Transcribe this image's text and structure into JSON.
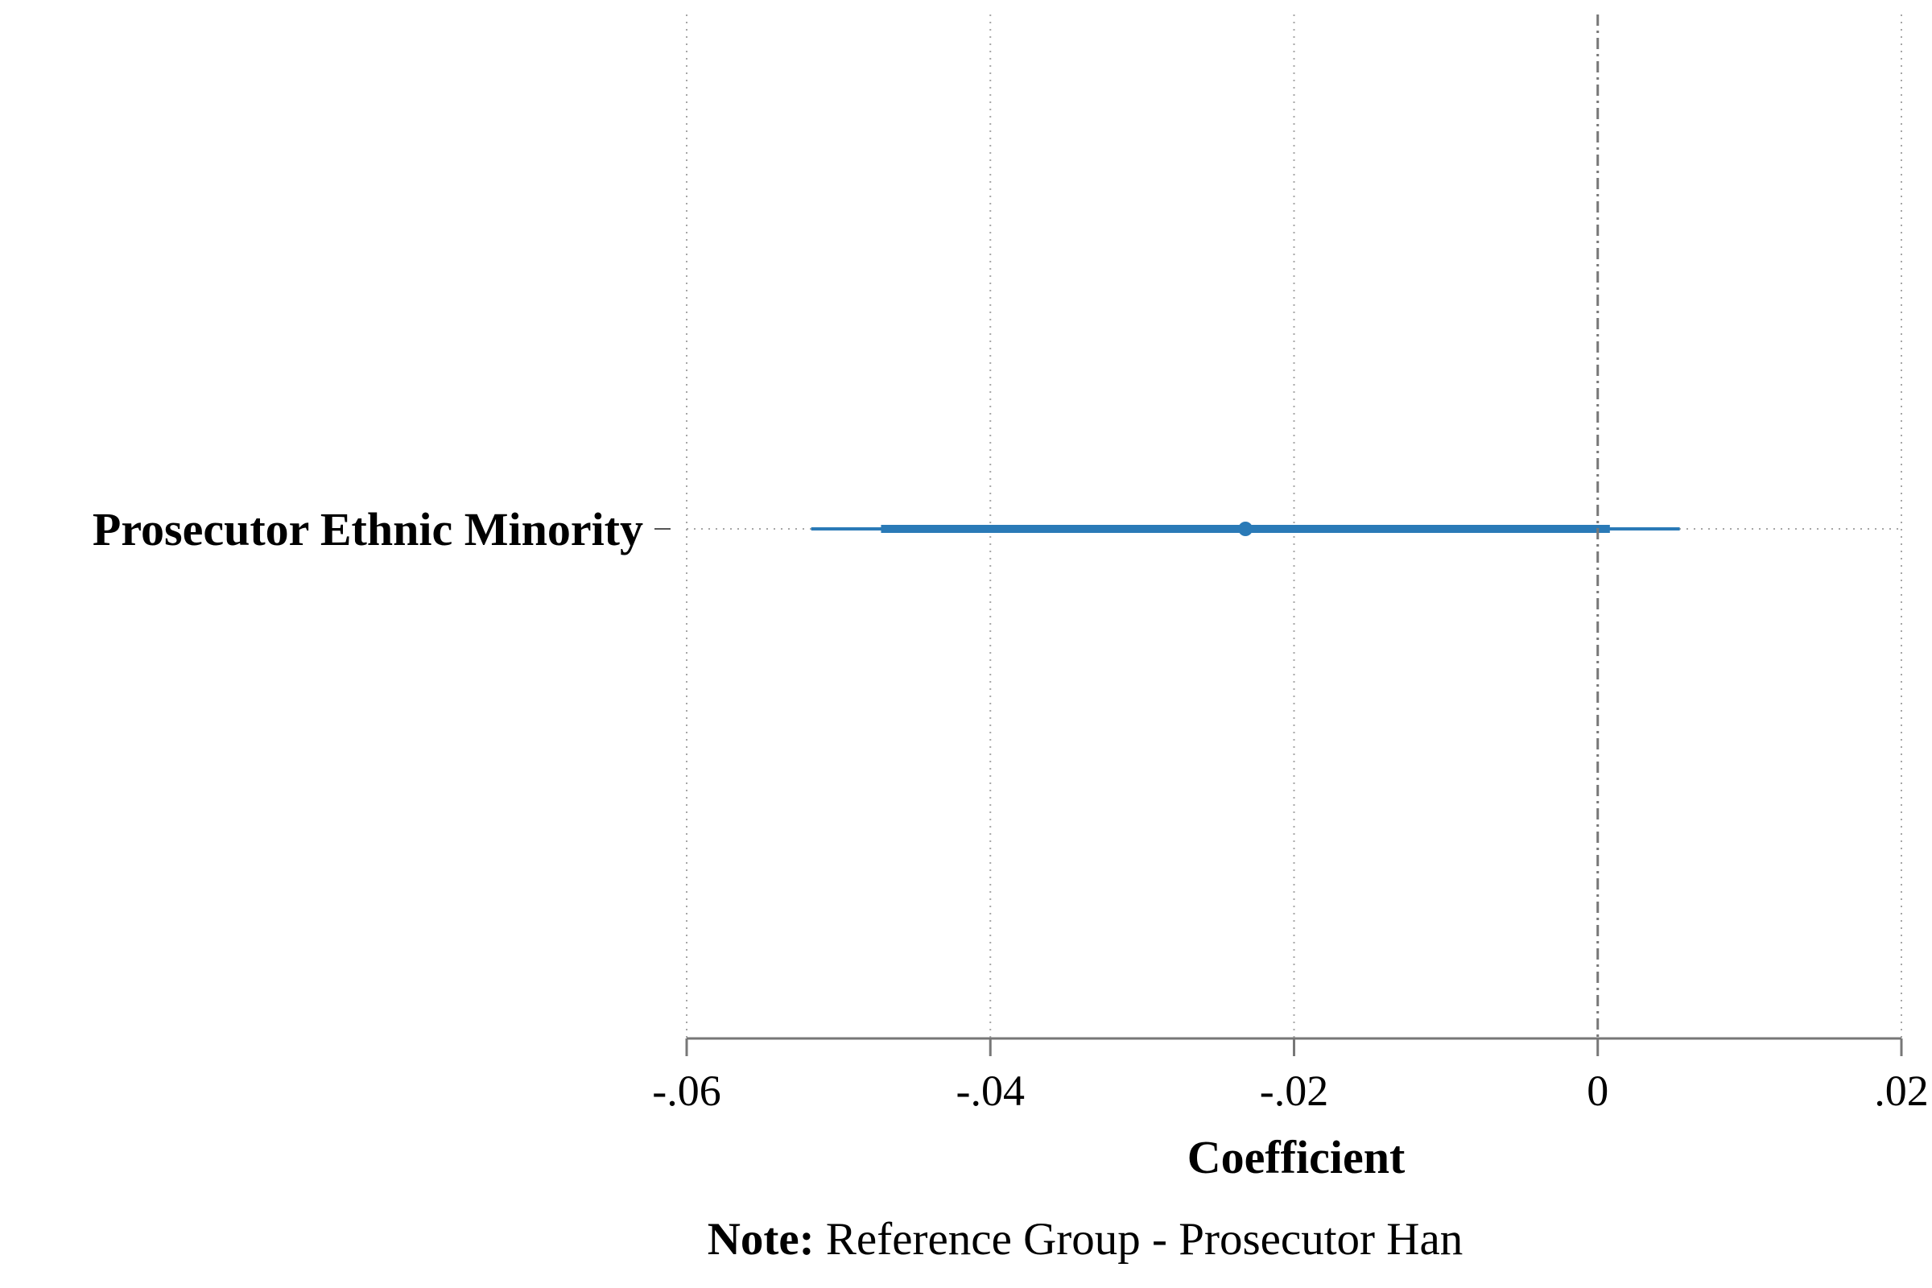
{
  "chart_data": {
    "type": "coefficient-plot",
    "orientation": "horizontal",
    "xlabel": "Coefficient",
    "xlim": [
      -0.06,
      0.02
    ],
    "xticks": [
      -0.06,
      -0.04,
      -0.02,
      0,
      0.02
    ],
    "xtick_labels": [
      "-.06",
      "-.04",
      "-.02",
      "0",
      ".02"
    ],
    "reference_line": 0,
    "grid": true,
    "series_color": "#2a7ab7",
    "items": [
      {
        "label": "Prosecutor Ethnic Minority",
        "estimate": -0.0232,
        "ci_inner": [
          -0.0472,
          0.0008
        ],
        "ci_outer": [
          -0.0518,
          0.0054
        ]
      }
    ]
  },
  "note": {
    "prefix": "Note:",
    "text": " Reference Group - Prosecutor Han"
  }
}
